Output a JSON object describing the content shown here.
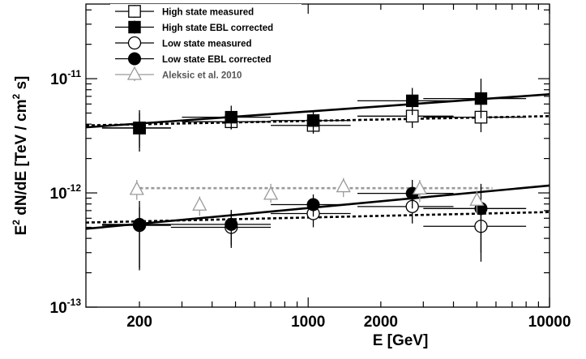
{
  "chart_data": {
    "type": "scatter",
    "xlabel": "E [GeV]",
    "ylabel_parts": [
      "E",
      "2",
      " dN/dE [TeV / cm",
      "2",
      " s]"
    ],
    "x_scale": "log",
    "y_scale": "log",
    "xlim": [
      120,
      10000
    ],
    "ylim": [
      1e-13,
      4.5e-11
    ],
    "x_tick_labels": [
      {
        "value": 200,
        "label": "200"
      },
      {
        "value": 1000,
        "label": "1000"
      },
      {
        "value": 2000,
        "label": "2000"
      },
      {
        "value": 10000,
        "label": "10000"
      }
    ],
    "y_tick_labels": [
      {
        "value": 1e-13,
        "base": "10",
        "exp": "-13"
      },
      {
        "value": 1e-12,
        "base": "10",
        "exp": "-12"
      },
      {
        "value": 1e-11,
        "base": "10",
        "exp": "-11"
      }
    ],
    "legend_position": "top-left",
    "series": [
      {
        "name": "High state measured",
        "marker": "open-square",
        "color": "#000000",
        "points": [
          {
            "x": 200,
            "y": 3.7e-12,
            "xlo": 140,
            "xhi": 270,
            "ylo": 2.5e-12,
            "yhi": 5e-12
          },
          {
            "x": 480,
            "y": 4.2e-12,
            "xlo": 300,
            "xhi": 700,
            "ylo": 3.6e-12,
            "yhi": 5e-12
          },
          {
            "x": 1050,
            "y": 3.9e-12,
            "xlo": 700,
            "xhi": 1500,
            "ylo": 3.3e-12,
            "yhi": 4.6e-12
          },
          {
            "x": 2700,
            "y": 4.7e-12,
            "xlo": 1600,
            "xhi": 4000,
            "ylo": 3.7e-12,
            "yhi": 5.8e-12
          },
          {
            "x": 5200,
            "y": 4.6e-12,
            "xlo": 3000,
            "xhi": 8000,
            "ylo": 3.4e-12,
            "yhi": 6.2e-12
          }
        ]
      },
      {
        "name": "High state EBL corrected",
        "marker": "filled-square",
        "color": "#000000",
        "points": [
          {
            "x": 200,
            "y": 3.7e-12,
            "xlo": 140,
            "xhi": 270,
            "ylo": 2.3e-12,
            "yhi": 5.3e-12
          },
          {
            "x": 480,
            "y": 4.6e-12,
            "xlo": 300,
            "xhi": 700,
            "ylo": 3.6e-12,
            "yhi": 5.8e-12
          },
          {
            "x": 1050,
            "y": 4.3e-12,
            "xlo": 700,
            "xhi": 1500,
            "ylo": 3.5e-12,
            "yhi": 5.2e-12
          },
          {
            "x": 2700,
            "y": 6.4e-12,
            "xlo": 1600,
            "xhi": 4000,
            "ylo": 4.8e-12,
            "yhi": 8.3e-12
          },
          {
            "x": 5200,
            "y": 6.7e-12,
            "xlo": 3000,
            "xhi": 8000,
            "ylo": 4.5e-12,
            "yhi": 1e-11
          }
        ]
      },
      {
        "name": "Low state measured",
        "marker": "open-circle",
        "color": "#000000",
        "points": [
          {
            "x": 200,
            "y": 5.2e-13,
            "xlo": 140,
            "xhi": 270,
            "ylo": 2.2e-13,
            "yhi": 7.5e-13
          },
          {
            "x": 480,
            "y": 5e-13,
            "xlo": 270,
            "xhi": 700,
            "ylo": 3.3e-13,
            "yhi": 6.7e-13
          },
          {
            "x": 1050,
            "y": 6.6e-13,
            "xlo": 700,
            "xhi": 1500,
            "ylo": 5e-13,
            "yhi": 8.3e-13
          },
          {
            "x": 2700,
            "y": 7.6e-13,
            "xlo": 1600,
            "xhi": 4000,
            "ylo": 5.4e-13,
            "yhi": 1e-12
          },
          {
            "x": 5200,
            "y": 5.1e-13,
            "xlo": 3000,
            "xhi": 8000,
            "ylo": 2.5e-13,
            "yhi": 7.7e-13
          }
        ]
      },
      {
        "name": "Low state EBL corrected",
        "marker": "filled-circle",
        "color": "#000000",
        "points": [
          {
            "x": 200,
            "y": 5.3e-13,
            "xlo": 140,
            "xhi": 270,
            "ylo": 2.1e-13,
            "yhi": 8.5e-13
          },
          {
            "x": 480,
            "y": 5.3e-13,
            "xlo": 270,
            "xhi": 700,
            "ylo": 3.5e-13,
            "yhi": 7.1e-13
          },
          {
            "x": 1050,
            "y": 7.9e-13,
            "xlo": 700,
            "xhi": 1500,
            "ylo": 6.2e-13,
            "yhi": 9.7e-13
          },
          {
            "x": 2700,
            "y": 9.9e-13,
            "xlo": 1600,
            "xhi": 4000,
            "ylo": 7.3e-13,
            "yhi": 1.3e-12
          },
          {
            "x": 5200,
            "y": 7.3e-13,
            "xlo": 3000,
            "xhi": 8000,
            "ylo": 3e-13,
            "yhi": 1.2e-12
          }
        ]
      },
      {
        "name": "Aleksic et al. 2010",
        "marker": "open-triangle",
        "color": "#9a9a9a",
        "points": [
          {
            "x": 195,
            "y": 1.07e-12,
            "ylo": 8.7e-13,
            "yhi": 1.3e-12
          },
          {
            "x": 355,
            "y": 7.8e-13,
            "ylo": 6.3e-13,
            "yhi": 9.3e-13
          },
          {
            "x": 700,
            "y": 9.7e-13,
            "ylo": 8.2e-13,
            "yhi": 1.2e-12
          },
          {
            "x": 1400,
            "y": 1.13e-12,
            "ylo": 9.2e-13,
            "yhi": 1.35e-12
          },
          {
            "x": 2900,
            "y": 1.08e-12,
            "ylo": 8.3e-13,
            "yhi": 1.3e-12
          },
          {
            "x": 5000,
            "y": 8.6e-13,
            "ylo": 6.6e-13,
            "yhi": 1.05e-12
          }
        ]
      }
    ],
    "fit_lines": [
      {
        "style": "solid",
        "color": "#000000",
        "x": [
          120,
          10000
        ],
        "y": [
          3.75e-12,
          7.3e-12
        ]
      },
      {
        "style": "dotted",
        "color": "#000000",
        "x": [
          120,
          10000
        ],
        "y": [
          3.9e-12,
          4.7e-12
        ]
      },
      {
        "style": "solid",
        "color": "#000000",
        "x": [
          120,
          10000
        ],
        "y": [
          4.85e-13,
          1.16e-12
        ]
      },
      {
        "style": "dotted",
        "color": "#000000",
        "x": [
          120,
          10000
        ],
        "y": [
          5.5e-13,
          6.8e-13
        ]
      },
      {
        "style": "dotted",
        "color": "#9a9a9a",
        "x": [
          190,
          5800
        ],
        "y": [
          1.1e-12,
          1.1e-12
        ]
      }
    ]
  }
}
